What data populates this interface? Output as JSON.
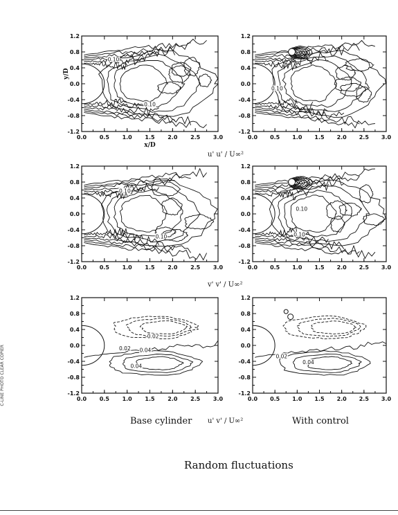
{
  "title": "Random fluctuations",
  "stamp_text": [
    "C-LINE PHOTO",
    "CLEAR COPIER"
  ],
  "captions": {
    "left": "Base cylinder",
    "right": "With control"
  },
  "quantity_labels": {
    "uu": "u' u' / U∞²",
    "vv": "v' v' / U∞²",
    "uv": "u' v' / U∞²"
  },
  "chart_data": [
    {
      "type": "contour",
      "id": "uu-base",
      "quantity": "u' u' / U∞²",
      "case": "Base cylinder",
      "xlabel": "x/D",
      "ylabel": "y/D",
      "xlim": [
        0.0,
        3.0
      ],
      "ylim": [
        -1.2,
        1.2
      ],
      "xticks": [
        "0.0",
        "0.5",
        "1.0",
        "1.5",
        "2.0",
        "2.5",
        "3.0"
      ],
      "yticks": [
        "1.2",
        "0.8",
        "0.4",
        "0.0",
        "-0.4",
        "-0.8",
        "-1.2"
      ],
      "contour_labels": [
        {
          "text": "0.10",
          "x": 0.7,
          "y": 0.58
        },
        {
          "text": "0.10",
          "x": 1.5,
          "y": -0.55
        }
      ],
      "dashed": false
    },
    {
      "type": "contour",
      "id": "uu-control",
      "quantity": "u' u' / U∞²",
      "case": "With control",
      "xlabel": "",
      "ylabel": "",
      "xlim": [
        0.0,
        3.0
      ],
      "ylim": [
        -1.2,
        1.2
      ],
      "xticks": [
        "0.0",
        "0.5",
        "1.0",
        "1.5",
        "2.0",
        "2.5",
        "3.0"
      ],
      "yticks": [
        "1.2",
        "0.8",
        "0.4",
        "0.0",
        "-0.4",
        "-0.8",
        "-1.2"
      ],
      "contour_labels": [
        {
          "text": "0.10",
          "x": 0.55,
          "y": -0.15
        }
      ],
      "dashed": false
    },
    {
      "type": "contour",
      "id": "vv-base",
      "quantity": "v' v' / U∞²",
      "case": "Base cylinder",
      "xlabel": "",
      "ylabel": "",
      "xlim": [
        0.0,
        3.0
      ],
      "ylim": [
        -1.2,
        1.2
      ],
      "xticks": [
        "0.0",
        "0.5",
        "1.0",
        "1.5",
        "2.0",
        "2.5",
        "3.0"
      ],
      "yticks": [
        "1.2",
        "0.8",
        "0.4",
        "0.0",
        "-0.4",
        "-0.8",
        "-1.2"
      ],
      "contour_labels": [
        {
          "text": "0.10",
          "x": 0.95,
          "y": 0.55
        },
        {
          "text": "0.10",
          "x": 1.75,
          "y": -0.6
        }
      ],
      "dashed": false
    },
    {
      "type": "contour",
      "id": "vv-control",
      "quantity": "v' v' / U∞²",
      "case": "With control",
      "xlabel": "",
      "ylabel": "",
      "xlim": [
        0.0,
        3.0
      ],
      "ylim": [
        -1.2,
        1.2
      ],
      "xticks": [
        "0.0",
        "0.5",
        "1.0",
        "1.5",
        "2.0",
        "2.5",
        "3.0"
      ],
      "yticks": [
        "1.2",
        "0.8",
        "0.4",
        "0.0",
        "-0.4",
        "-0.8",
        "-1.2"
      ],
      "contour_labels": [
        {
          "text": "0.10",
          "x": 1.1,
          "y": 0.1
        },
        {
          "text": "0.10",
          "x": 1.05,
          "y": -0.55
        }
      ],
      "dashed": false
    },
    {
      "type": "contour",
      "id": "uv-base",
      "quantity": "u' v' / U∞²",
      "case": "Base cylinder",
      "xlabel": "",
      "ylabel": "",
      "xlim": [
        0.0,
        3.0
      ],
      "ylim": [
        -1.2,
        1.2
      ],
      "xticks": [
        "0.0",
        "0.5",
        "1.0",
        "1.5",
        "2.0",
        "2.5",
        "3.0"
      ],
      "yticks": [
        "1.2",
        "0.8",
        "0.4",
        "0.0",
        "-0.4",
        "-0.8",
        "-1.2"
      ],
      "contour_labels": [
        {
          "text": "-0.02",
          "x": 1.55,
          "y": 0.2
        },
        {
          "text": "0.02",
          "x": 0.95,
          "y": -0.1
        },
        {
          "text": "0.04",
          "x": 1.4,
          "y": -0.15
        },
        {
          "text": "0.04",
          "x": 1.2,
          "y": -0.55
        }
      ],
      "dashed": true
    },
    {
      "type": "contour",
      "id": "uv-control",
      "quantity": "u' v' / U∞²",
      "case": "With control",
      "xlabel": "",
      "ylabel": "",
      "xlim": [
        0.0,
        3.0
      ],
      "ylim": [
        -1.2,
        1.2
      ],
      "xticks": [
        "0.0",
        "0.5",
        "1.0",
        "1.5",
        "2.0",
        "2.5",
        "3.0"
      ],
      "yticks": [
        "1.2",
        "0.8",
        "0.4",
        "0.0",
        "-0.4",
        "-0.8",
        "-1.2"
      ],
      "contour_labels": [
        {
          "text": "0.02",
          "x": 0.65,
          "y": -0.3
        },
        {
          "text": "0.04",
          "x": 1.25,
          "y": -0.45
        }
      ],
      "dashed": true
    }
  ]
}
